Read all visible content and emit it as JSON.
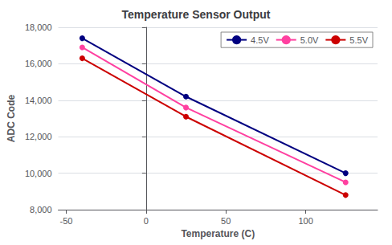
{
  "chart_data": {
    "type": "line",
    "title": "Temperature Sensor Output",
    "xlabel": "Temperature (C)",
    "ylabel": "ADC Code",
    "x": [
      -40,
      25,
      125
    ],
    "series": [
      {
        "name": "4.5V",
        "color": "#000080",
        "marker": "circle",
        "values": [
          17400,
          14200,
          10000
        ]
      },
      {
        "name": "5.0V",
        "color": "#FF40A0",
        "marker": "circle",
        "values": [
          16900,
          13600,
          9500
        ]
      },
      {
        "name": "5.5V",
        "color": "#CC0000",
        "marker": "circle",
        "values": [
          16300,
          13100,
          8800
        ]
      }
    ],
    "xlim": [
      -55,
      145
    ],
    "xticks": [
      -50,
      0,
      50,
      100
    ],
    "ylim": [
      8000,
      18000
    ],
    "yticks": [
      8000,
      10000,
      12000,
      14000,
      16000,
      18000
    ],
    "grid": true,
    "legend": "upper right"
  }
}
